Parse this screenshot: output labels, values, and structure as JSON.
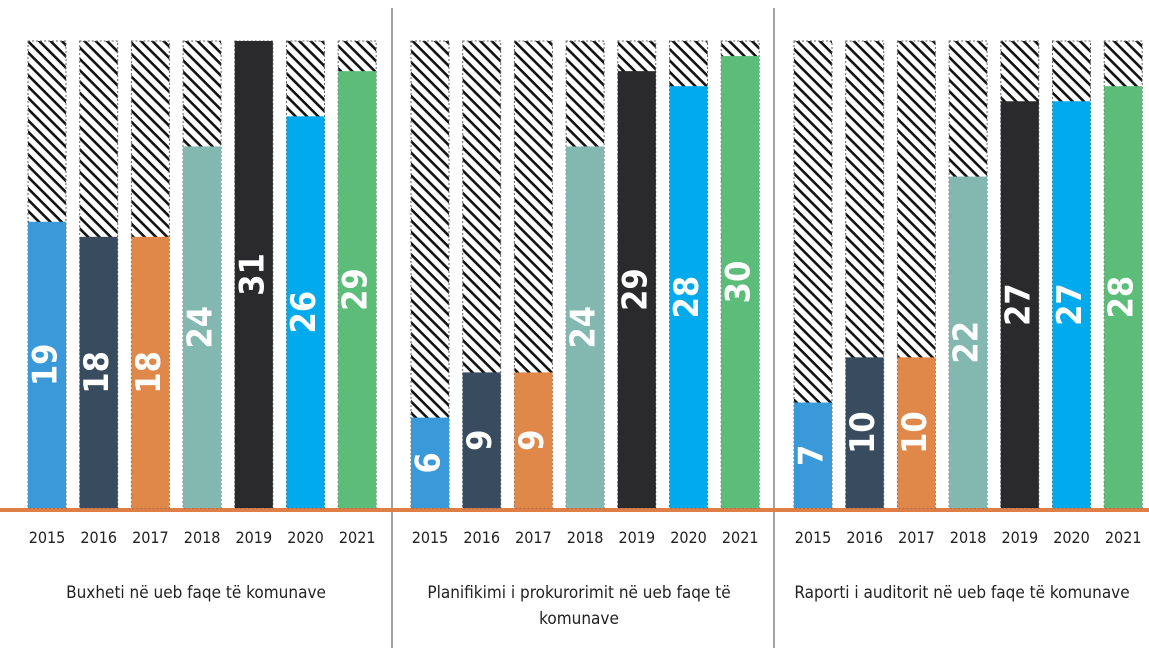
{
  "chart_data": [
    {
      "type": "bar",
      "title": "Buxheti në ueb faqe të komunave",
      "categories": [
        "2015",
        "2016",
        "2017",
        "2018",
        "2019",
        "2020",
        "2021"
      ],
      "values": [
        19,
        18,
        18,
        24,
        31,
        26,
        29
      ],
      "colors": [
        "#3a9ad9",
        "#394b5e",
        "#e0884a",
        "#82b8b0",
        "#2a2a2c",
        "#00aaec",
        "#5bbd78"
      ],
      "ylim": [
        0,
        31
      ]
    },
    {
      "type": "bar",
      "title": "Planifikimi i prokurorimit në ueb faqe të komunave",
      "categories": [
        "2015",
        "2016",
        "2017",
        "2018",
        "2019",
        "2020",
        "2021"
      ],
      "values": [
        6,
        9,
        9,
        24,
        29,
        28,
        30
      ],
      "colors": [
        "#3a9ad9",
        "#394b5e",
        "#e0884a",
        "#82b8b0",
        "#2a2a2c",
        "#00aaec",
        "#5bbd78"
      ],
      "ylim": [
        0,
        31
      ]
    },
    {
      "type": "bar",
      "title": "Raporti i auditorit në ueb faqe të komunave",
      "categories": [
        "2015",
        "2016",
        "2017",
        "2018",
        "2019",
        "2020",
        "2021"
      ],
      "values": [
        7,
        10,
        10,
        22,
        27,
        27,
        28
      ],
      "colors": [
        "#3a9ad9",
        "#394b5e",
        "#e0884a",
        "#82b8b0",
        "#2a2a2c",
        "#00aaec",
        "#5bbd78"
      ],
      "ylim": [
        0,
        31
      ]
    }
  ]
}
